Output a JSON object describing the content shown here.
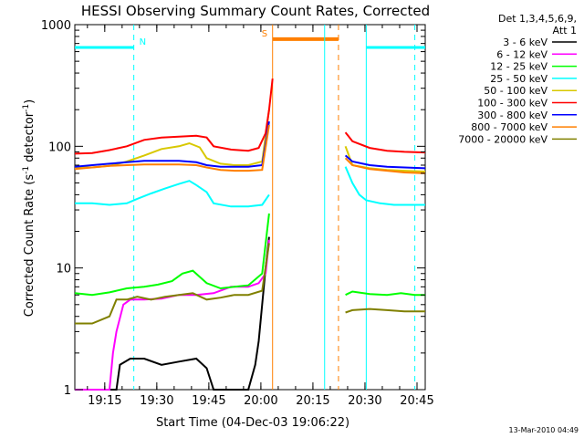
{
  "chart_data": {
    "type": "line",
    "title": "HESSI Observing Summary Count Rates, Corrected",
    "xlabel": "Start Time (04-Dec-03 19:06:22)",
    "ylabel_parts": [
      "Corrected Count Rate (s",
      "-1",
      " detector",
      "-1",
      ")"
    ],
    "yscale": "log",
    "ylim": [
      1,
      1000
    ],
    "xlim_minutes": [
      0,
      101
    ],
    "x_ticks": [
      {
        "label": "19:15",
        "min": 8.63
      },
      {
        "label": "19:30",
        "min": 23.63
      },
      {
        "label": "19:45",
        "min": 38.63
      },
      {
        "label": "20:00",
        "min": 53.63
      },
      {
        "label": "20:15",
        "min": 68.63
      },
      {
        "label": "20:30",
        "min": 83.63
      },
      {
        "label": "20:45",
        "min": 98.63
      }
    ],
    "y_ticks": [
      {
        "label": "1",
        "v": 1
      },
      {
        "label": "10",
        "v": 10
      },
      {
        "label": "100",
        "v": 100
      },
      {
        "label": "1000",
        "v": 1000
      }
    ],
    "legend_header": [
      "Det 1,3,4,5,6,9,",
      "Att 1"
    ],
    "legend_position": "right",
    "flags": [
      {
        "label": "N",
        "color": "#00ffff",
        "style": "solid",
        "level": 650,
        "from": 0,
        "to": 17
      },
      {
        "label": "N",
        "color": "#00ffff",
        "style": "solid",
        "level": 650,
        "from": 84,
        "to": 101
      },
      {
        "label": "S",
        "color": "#ff7f00",
        "style": "bold",
        "level": 760,
        "from": 57,
        "to": 76
      }
    ],
    "vlines": [
      {
        "min": 17,
        "color": "#00ffff",
        "dash": true
      },
      {
        "min": 57,
        "color": "#ff7f00",
        "dash": false
      },
      {
        "min": 72,
        "color": "#00ffff",
        "dash": false
      },
      {
        "min": 76,
        "color": "#ff7f00",
        "dash": true
      },
      {
        "min": 84,
        "color": "#00ffff",
        "dash": false
      },
      {
        "min": 98,
        "color": "#00ffff",
        "dash": true
      }
    ],
    "gap": [
      57,
      78
    ],
    "series": [
      {
        "name": "3 - 6 keV",
        "color": "#000000",
        "x": [
          0,
          12,
          13,
          16,
          20,
          25,
          30,
          35,
          38,
          40,
          50,
          52,
          53,
          54,
          55,
          56
        ],
        "y": [
          1,
          1,
          1.6,
          1.8,
          1.8,
          1.6,
          1.7,
          1.8,
          1.5,
          1,
          1,
          1.6,
          2.5,
          5,
          10,
          18
        ]
      },
      {
        "name": "6 - 12 keV",
        "color": "#ff00ff",
        "x": [
          0,
          10,
          11,
          12,
          14,
          16,
          20,
          25,
          30,
          35,
          40,
          45,
          50,
          53,
          55,
          56
        ],
        "y": [
          1,
          1,
          2,
          3,
          5,
          5.5,
          5.5,
          5.6,
          6,
          6,
          6.2,
          7,
          7,
          7.5,
          9,
          17
        ]
      },
      {
        "name": "12 - 25 keV",
        "color": "#00ff00",
        "x": [
          0,
          5,
          10,
          15,
          20,
          24,
          28,
          31,
          34,
          38,
          42,
          46,
          50,
          54,
          56,
          78,
          80,
          85,
          90,
          94,
          98,
          101
        ],
        "y": [
          6.2,
          6,
          6.3,
          6.8,
          7,
          7.3,
          7.8,
          9,
          9.5,
          7.5,
          6.8,
          7,
          7.2,
          9,
          28,
          6,
          6.4,
          6.1,
          6,
          6.2,
          6,
          6
        ]
      },
      {
        "name": "25 - 50 keV",
        "color": "#00ffff",
        "x": [
          0,
          5,
          10,
          15,
          18,
          22,
          26,
          30,
          33,
          35,
          38,
          40,
          45,
          50,
          54,
          56,
          78,
          80,
          82,
          84,
          88,
          92,
          96,
          101
        ],
        "y": [
          34,
          34,
          33,
          34,
          37,
          41,
          45,
          49,
          52,
          48,
          42,
          34,
          32,
          32,
          33,
          40,
          68,
          50,
          40,
          36,
          34,
          33,
          33,
          33
        ]
      },
      {
        "name": "50 - 100 keV",
        "color": "#d8c800",
        "x": [
          0,
          5,
          10,
          15,
          20,
          25,
          30,
          33,
          36,
          38,
          42,
          46,
          50,
          54,
          56,
          78,
          80,
          85,
          90,
          95,
          101
        ],
        "y": [
          67,
          67,
          69,
          75,
          84,
          95,
          100,
          106,
          98,
          80,
          72,
          70,
          70,
          75,
          200,
          100,
          70,
          66,
          64,
          63,
          62
        ]
      },
      {
        "name": "100 - 300 keV",
        "color": "#ff0000",
        "x": [
          0,
          5,
          10,
          15,
          20,
          25,
          30,
          35,
          38,
          40,
          45,
          50,
          53,
          55,
          56,
          57,
          78,
          80,
          85,
          90,
          95,
          101
        ],
        "y": [
          87,
          88,
          93,
          100,
          113,
          118,
          120,
          122,
          118,
          100,
          94,
          92,
          97,
          128,
          200,
          360,
          130,
          110,
          97,
          92,
          90,
          89
        ]
      },
      {
        "name": "300 - 800 keV",
        "color": "#0000ff",
        "x": [
          0,
          5,
          10,
          15,
          20,
          25,
          30,
          35,
          38,
          42,
          46,
          50,
          54,
          56,
          78,
          80,
          85,
          90,
          95,
          101
        ],
        "y": [
          68,
          70,
          72,
          74,
          76,
          76,
          76,
          74,
          70,
          68,
          68,
          68,
          70,
          160,
          84,
          75,
          70,
          68,
          67,
          66
        ]
      },
      {
        "name": "800 - 7000 keV",
        "color": "#ff7f00",
        "x": [
          0,
          5,
          10,
          15,
          20,
          25,
          30,
          35,
          38,
          42,
          46,
          50,
          54,
          56,
          78,
          80,
          85,
          90,
          95,
          101
        ],
        "y": [
          65,
          67,
          69,
          70,
          71,
          71,
          71,
          70,
          67,
          64,
          63,
          63,
          64,
          150,
          80,
          70,
          65,
          63,
          61,
          60
        ]
      },
      {
        "name": "7000 - 20000 keV",
        "color": "#808000",
        "x": [
          0,
          5,
          10,
          12,
          15,
          18,
          22,
          26,
          30,
          34,
          38,
          42,
          46,
          50,
          54,
          56,
          78,
          80,
          85,
          90,
          95,
          101
        ],
        "y": [
          3.5,
          3.5,
          4,
          5.5,
          5.5,
          5.8,
          5.5,
          5.8,
          6,
          6.2,
          5.5,
          5.7,
          6,
          6,
          6.5,
          16,
          4.3,
          4.5,
          4.6,
          4.5,
          4.4,
          4.4
        ]
      }
    ]
  },
  "footer": {
    "timestamp": "13-Mar-2010 04:49"
  }
}
